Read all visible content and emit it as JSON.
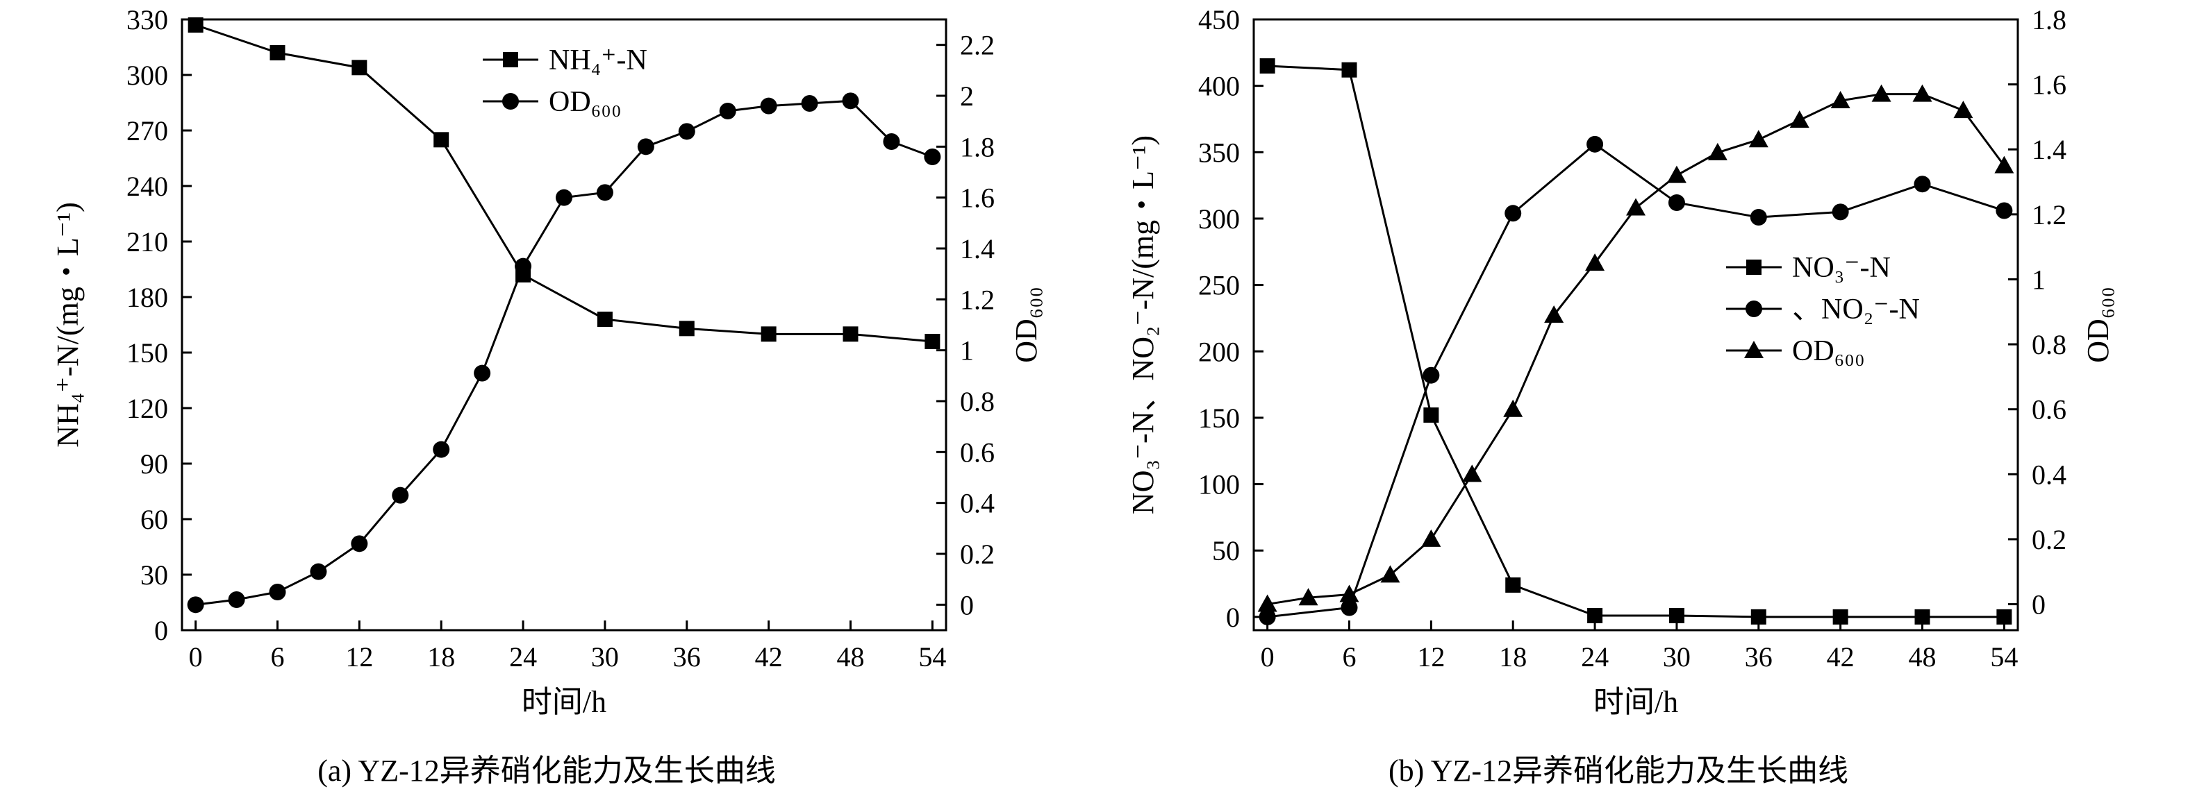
{
  "figure": {
    "panels": [
      {
        "caption": "(a) YZ-12异养硝化能力及生长曲线",
        "xlabel": "时间/h",
        "ylabel_left": "NH₄⁺-N/(mg・L⁻¹)",
        "ylabel_right": "OD₆₀₀"
      },
      {
        "caption": "(b) YZ-12异养硝化能力及生长曲线",
        "xlabel": "时间/h",
        "ylabel_left": "NO₃⁻-N、NO₂⁻-N/(mg・L⁻¹)",
        "ylabel_right": "OD₆₀₀"
      }
    ]
  },
  "chart_data": [
    {
      "type": "line",
      "caption": "(a) YZ-12异养硝化能力及生长曲线",
      "xlabel": "时间/h",
      "ylabel": "NH₄⁺-N/(mg・L⁻¹)",
      "y2label": "OD₆₀₀",
      "xlim": [
        -1,
        55
      ],
      "ylim": [
        0,
        330
      ],
      "y2lim": [
        -0.1,
        2.3
      ],
      "xticks": [
        0,
        6,
        12,
        18,
        24,
        30,
        36,
        42,
        48,
        54
      ],
      "yticks": [
        0,
        30,
        60,
        90,
        120,
        150,
        180,
        210,
        240,
        270,
        300,
        330
      ],
      "y2ticks": [
        0,
        0.2,
        0.4,
        0.6,
        0.8,
        1.0,
        1.2,
        1.4,
        1.6,
        1.8,
        2.0,
        2.2
      ],
      "grid": false,
      "legend_position": "top-center",
      "series": [
        {
          "name": "NH₄⁺-N",
          "marker": "square",
          "axis": "left",
          "x": [
            0,
            6,
            12,
            18,
            24,
            30,
            36,
            42,
            48,
            54
          ],
          "y": [
            327,
            312,
            304,
            265,
            192,
            168,
            163,
            160,
            160,
            156
          ]
        },
        {
          "name": "OD₆₀₀",
          "marker": "circle",
          "axis": "right",
          "x": [
            0,
            3,
            6,
            9,
            12,
            15,
            18,
            21,
            24,
            27,
            30,
            33,
            36,
            39,
            42,
            45,
            48,
            51,
            54
          ],
          "y": [
            0.0,
            0.02,
            0.05,
            0.13,
            0.24,
            0.43,
            0.61,
            0.91,
            1.33,
            1.6,
            1.62,
            1.8,
            1.86,
            1.94,
            1.96,
            1.97,
            1.98,
            1.82,
            1.76
          ]
        }
      ]
    },
    {
      "type": "line",
      "caption": "(b) YZ-12异养硝化能力及生长曲线",
      "xlabel": "时间/h",
      "ylabel": "NO₃⁻-N、NO₂⁻-N/(mg・L⁻¹)",
      "y2label": "OD₆₀₀",
      "xlim": [
        -1,
        55
      ],
      "ylim": [
        -10,
        450
      ],
      "y2lim": [
        -0.08,
        1.8
      ],
      "xticks": [
        0,
        6,
        12,
        18,
        24,
        30,
        36,
        42,
        48,
        54
      ],
      "yticks": [
        0,
        50,
        100,
        150,
        200,
        250,
        300,
        350,
        400,
        450
      ],
      "y2ticks": [
        0,
        0.2,
        0.4,
        0.6,
        0.8,
        1.0,
        1.2,
        1.4,
        1.6,
        1.8
      ],
      "grid": false,
      "legend_position": "middle-right",
      "series": [
        {
          "name": "NO₃⁻-N",
          "marker": "square",
          "axis": "left",
          "x": [
            0,
            6,
            12,
            18,
            24,
            30,
            36,
            42,
            48,
            54
          ],
          "y": [
            415,
            412,
            152,
            24,
            1,
            1,
            0,
            0,
            0,
            0
          ]
        },
        {
          "name": "、NO₂⁻-N",
          "marker": "circle",
          "axis": "left",
          "x": [
            0,
            6,
            12,
            18,
            24,
            30,
            36,
            42,
            48,
            54
          ],
          "y": [
            0,
            7,
            182,
            304,
            356,
            312,
            301,
            305,
            326,
            306
          ]
        },
        {
          "name": "OD₆₀₀",
          "marker": "triangle",
          "axis": "right",
          "x": [
            0,
            3,
            6,
            9,
            12,
            15,
            18,
            21,
            24,
            27,
            30,
            33,
            36,
            39,
            42,
            45,
            48,
            51,
            54
          ],
          "y": [
            0.0,
            0.02,
            0.03,
            0.09,
            0.2,
            0.4,
            0.6,
            0.89,
            1.05,
            1.22,
            1.32,
            1.39,
            1.43,
            1.49,
            1.55,
            1.57,
            1.57,
            1.52,
            1.35
          ]
        }
      ]
    }
  ]
}
